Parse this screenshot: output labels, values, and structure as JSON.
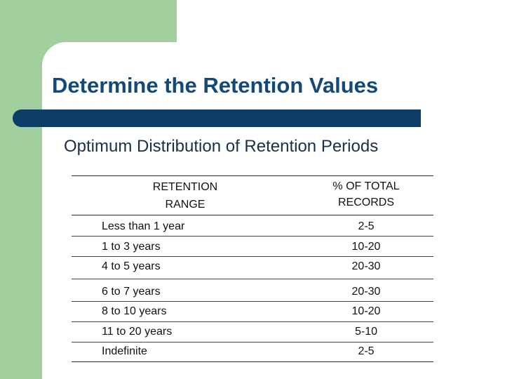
{
  "slide": {
    "title": "Determine the Retention Values",
    "subtitle": "Optimum Distribution of Retention Periods",
    "colors": {
      "accent_green": "#a2cf9e",
      "title_blue": "#13497a",
      "bar_navy": "#0b3d66"
    }
  },
  "table": {
    "header": {
      "range_line1": "RETENTION",
      "range_line2": "RANGE",
      "pct_line1": "% OF TOTAL",
      "pct_line2": "RECORDS"
    },
    "rows": [
      {
        "range": "Less than 1 year",
        "pct": "2-5"
      },
      {
        "range": "1 to 3 years",
        "pct": "10-20"
      },
      {
        "range": "4 to 5 years",
        "pct": "20-30"
      },
      {
        "range": "6 to 7 years",
        "pct": "20-30"
      },
      {
        "range": "8 to 10 years",
        "pct": "10-20"
      },
      {
        "range": "11 to 20 years",
        "pct": "5-10"
      },
      {
        "range": "Indefinite",
        "pct": "2-5"
      }
    ]
  }
}
